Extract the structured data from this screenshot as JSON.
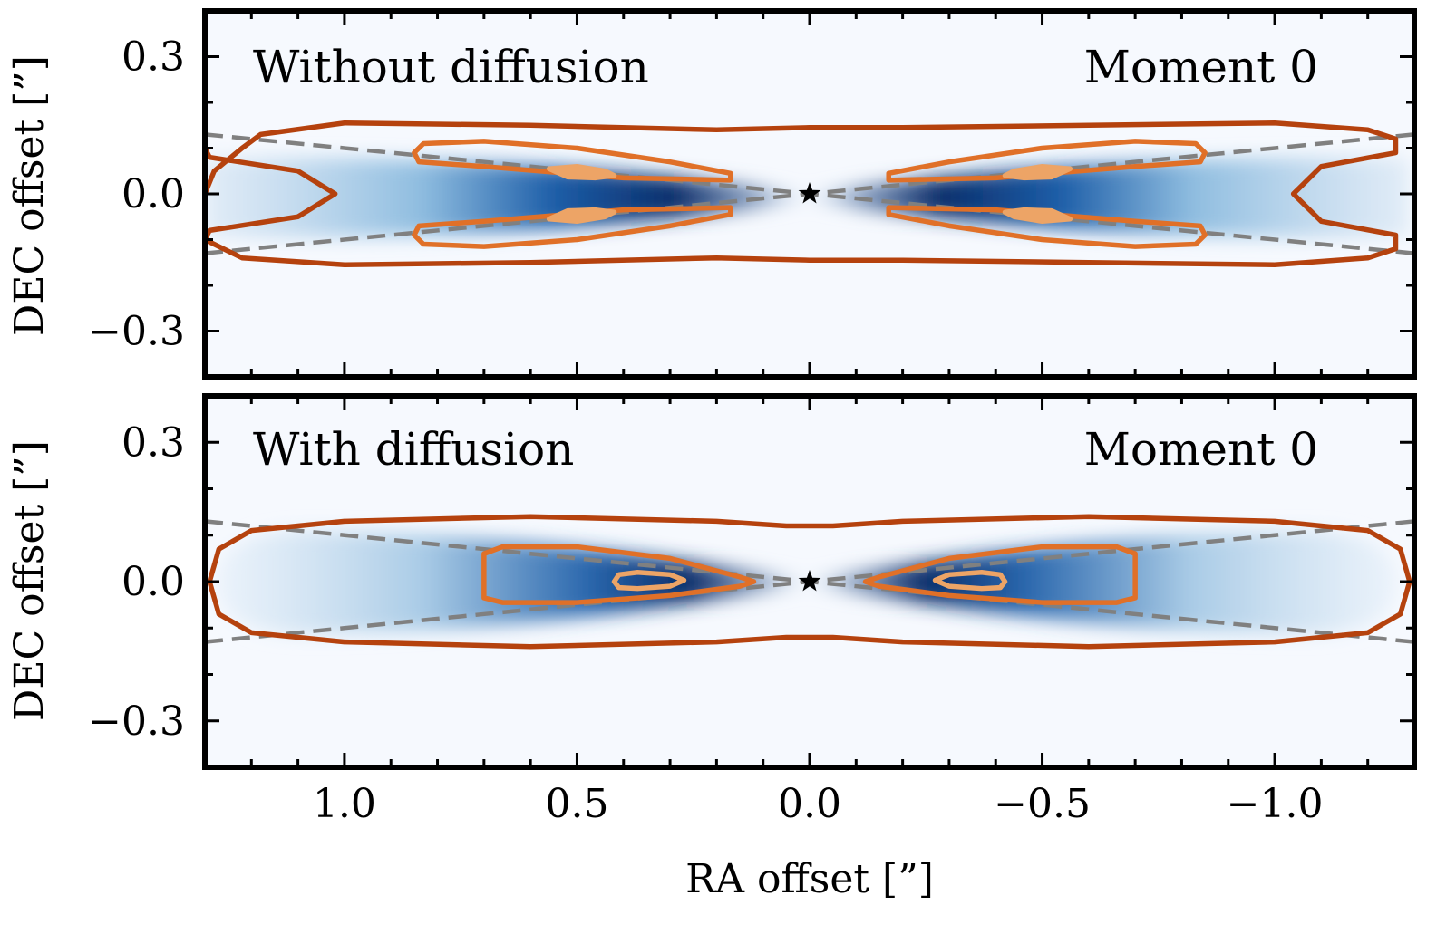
{
  "chart_data": [
    {
      "type": "heatmap",
      "title": "",
      "annotation_left": "Without diffusion",
      "annotation_right": "Moment 0",
      "xlabel": "",
      "ylabel": "DEC offset [”]",
      "xlim": [
        1.3,
        -1.3
      ],
      "ylim": [
        -0.4,
        0.4
      ],
      "yticks": [
        0.3,
        0.0,
        -0.3
      ],
      "ytick_labels": [
        "0.3",
        "0.0",
        "−0.3"
      ],
      "xticks": [
        1.0,
        0.5,
        0.0,
        -0.5,
        -1.0
      ],
      "colormap": "Blues",
      "contour_colors": [
        "#b5420e",
        "#e07028",
        "#eda466"
      ],
      "guide_line_color": "#808080",
      "star": {
        "x": 0.0,
        "y": 0.0
      },
      "guide_lines_slope": 0.1,
      "contours": {
        "outer": [
          [
            1.3,
            0.0
          ],
          [
            1.28,
            0.05
          ],
          [
            1.22,
            0.1
          ],
          [
            1.18,
            0.13
          ],
          [
            1.0,
            0.155
          ],
          [
            0.6,
            0.15
          ],
          [
            0.2,
            0.14
          ],
          [
            0.0,
            0.145
          ],
          [
            -0.2,
            0.145
          ],
          [
            -0.6,
            0.15
          ],
          [
            -1.0,
            0.155
          ],
          [
            -1.2,
            0.14
          ],
          [
            -1.26,
            0.12
          ],
          [
            -1.26,
            0.09
          ],
          [
            -1.1,
            0.06
          ],
          [
            -1.04,
            0.0
          ],
          [
            -1.1,
            -0.06
          ],
          [
            -1.26,
            -0.09
          ],
          [
            -1.26,
            -0.12
          ],
          [
            -1.2,
            -0.14
          ],
          [
            -1.0,
            -0.155
          ],
          [
            -0.6,
            -0.15
          ],
          [
            -0.2,
            -0.145
          ],
          [
            0.0,
            -0.145
          ],
          [
            0.2,
            -0.14
          ],
          [
            0.6,
            -0.15
          ],
          [
            1.0,
            -0.155
          ],
          [
            1.22,
            -0.14
          ],
          [
            1.3,
            -0.1
          ],
          [
            1.29,
            -0.08
          ],
          [
            1.1,
            -0.05
          ],
          [
            1.02,
            0.0
          ],
          [
            1.1,
            0.05
          ],
          [
            1.29,
            0.08
          ],
          [
            1.3,
            0.1
          ]
        ],
        "middle": [
          [
            0.85,
            0.09
          ],
          [
            0.83,
            0.11
          ],
          [
            0.7,
            0.115
          ],
          [
            0.5,
            0.1
          ],
          [
            0.3,
            0.07
          ],
          [
            0.17,
            0.045
          ],
          [
            0.17,
            0.03
          ],
          [
            0.4,
            0.035
          ],
          [
            0.7,
            0.06
          ],
          [
            0.84,
            0.07
          ]
        ],
        "inner": [
          [
            0.56,
            0.055
          ],
          [
            0.5,
            0.06
          ],
          [
            0.44,
            0.05
          ],
          [
            0.42,
            0.04
          ],
          [
            0.46,
            0.035
          ],
          [
            0.52,
            0.037
          ]
        ]
      }
    },
    {
      "type": "heatmap",
      "title": "",
      "annotation_left": "With diffusion",
      "annotation_right": "Moment 0",
      "xlabel": "RA offset [”]",
      "ylabel": "DEC offset [”]",
      "xlim": [
        1.3,
        -1.3
      ],
      "ylim": [
        -0.4,
        0.4
      ],
      "yticks": [
        0.3,
        0.0,
        -0.3
      ],
      "ytick_labels": [
        "0.3",
        "0.0",
        "−0.3"
      ],
      "xticks": [
        1.0,
        0.5,
        0.0,
        -0.5,
        -1.0
      ],
      "xtick_labels": [
        "1.0",
        "0.5",
        "0.0",
        "−0.5",
        "−1.0"
      ],
      "colormap": "Blues",
      "contour_colors": [
        "#b5420e",
        "#e07028",
        "#eda466"
      ],
      "guide_line_color": "#808080",
      "star": {
        "x": 0.0,
        "y": 0.0
      },
      "guide_lines_slope": 0.1,
      "contours": {
        "outer": [
          [
            1.29,
            0.0
          ],
          [
            1.27,
            0.07
          ],
          [
            1.2,
            0.11
          ],
          [
            1.0,
            0.13
          ],
          [
            0.6,
            0.14
          ],
          [
            0.2,
            0.13
          ],
          [
            0.05,
            0.12
          ],
          [
            0.0,
            0.12
          ],
          [
            -0.05,
            0.12
          ],
          [
            -0.2,
            0.13
          ],
          [
            -0.6,
            0.14
          ],
          [
            -1.0,
            0.13
          ],
          [
            -1.2,
            0.11
          ],
          [
            -1.27,
            0.07
          ],
          [
            -1.29,
            0.0
          ],
          [
            -1.27,
            -0.07
          ],
          [
            -1.2,
            -0.11
          ],
          [
            -1.0,
            -0.13
          ],
          [
            -0.6,
            -0.14
          ],
          [
            -0.2,
            -0.13
          ],
          [
            -0.05,
            -0.12
          ],
          [
            0.0,
            -0.12
          ],
          [
            0.05,
            -0.12
          ],
          [
            0.2,
            -0.13
          ],
          [
            0.6,
            -0.14
          ],
          [
            1.0,
            -0.13
          ],
          [
            1.2,
            -0.11
          ],
          [
            1.27,
            -0.07
          ]
        ],
        "middle": [
          [
            0.7,
            0.0
          ],
          [
            0.7,
            0.06
          ],
          [
            0.66,
            0.075
          ],
          [
            0.5,
            0.075
          ],
          [
            0.3,
            0.05
          ],
          [
            0.15,
            0.01
          ],
          [
            0.12,
            0.0
          ],
          [
            0.15,
            -0.01
          ],
          [
            0.3,
            -0.03
          ],
          [
            0.5,
            -0.045
          ],
          [
            0.66,
            -0.045
          ],
          [
            0.7,
            -0.035
          ]
        ],
        "inner": [
          [
            0.42,
            0.0
          ],
          [
            0.41,
            0.015
          ],
          [
            0.37,
            0.02
          ],
          [
            0.3,
            0.015
          ],
          [
            0.27,
            0.003
          ],
          [
            0.3,
            -0.01
          ],
          [
            0.37,
            -0.015
          ],
          [
            0.41,
            -0.013
          ]
        ]
      }
    }
  ]
}
